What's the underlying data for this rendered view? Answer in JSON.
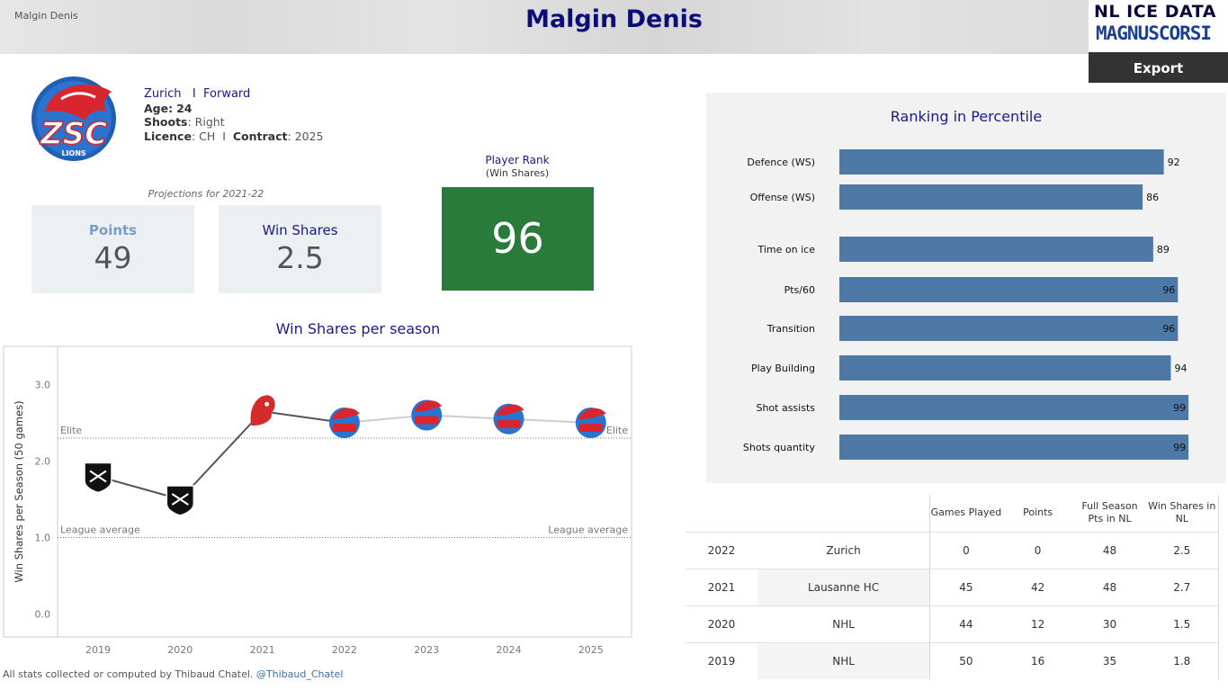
{
  "header": {
    "small_title": "Malgin Denis",
    "title": "Malgin Denis",
    "logo_line1": "NL ICE DATA",
    "logo_line2": "MAGNUSCORSI",
    "export_label": "Export"
  },
  "player": {
    "team": "Zurich",
    "separator": "I",
    "position": "Forward",
    "age_label": "Age:",
    "age": "24",
    "shoots_label": "Shoots",
    "shoots": ": Right",
    "licence_label": "Licence",
    "licence": ": CH",
    "contract_label": "Contract",
    "contract": ": 2025",
    "logo_text": "ZSC",
    "logo_sub": "LIONS"
  },
  "projections": {
    "label": "Projections for 2021-22",
    "points_label": "Points",
    "points_value": "49",
    "ws_label": "Win Shares",
    "ws_value": "2.5"
  },
  "player_rank": {
    "title": "Player Rank",
    "subtitle": "(Win Shares)",
    "value": "96",
    "color": "#2a7a3c"
  },
  "chart_data": [
    {
      "type": "line",
      "title": "Win Shares per season",
      "ylabel": "Win Shares per Season (50 games)",
      "xlabel": "",
      "x": [
        "2019",
        "2020",
        "2021",
        "2022",
        "2023",
        "2024",
        "2025"
      ],
      "series": [
        {
          "values": [
            1.8,
            1.5,
            2.65,
            2.5,
            2.6,
            2.55,
            2.5
          ],
          "teams": [
            "NHL",
            "NHL",
            "Lausanne HC",
            "Zurich",
            "Zurich",
            "Zurich",
            "Zurich"
          ],
          "color": "#555555",
          "projection_color": "#cccccc"
        }
      ],
      "yticks": [
        "0.0",
        "1.0",
        "2.0",
        "3.0"
      ],
      "ylim": [
        -0.3,
        3.5
      ],
      "reference_lines": [
        {
          "label": "Elite",
          "value": 2.3
        },
        {
          "label": "League average",
          "value": 1.0
        }
      ],
      "grid": false
    },
    {
      "type": "bar",
      "orientation": "horizontal",
      "title": "Ranking in Percentile",
      "categories": [
        "Defence (WS)",
        "Offense (WS)",
        "Time on ice",
        "Pts/60",
        "Transition",
        "Play Building",
        "Shot assists",
        "Shots quantity"
      ],
      "values": [
        92,
        86,
        89,
        96,
        96,
        94,
        99,
        99
      ],
      "xlim": [
        0,
        100
      ],
      "color": "#4e79a7"
    }
  ],
  "table": {
    "headers": [
      "",
      "",
      "Games Played",
      "Points",
      "Full Season Pts in NL",
      "Win Shares in NL"
    ],
    "rows": [
      {
        "year": "2022",
        "team": "Zurich",
        "gp": "0",
        "pts": "0",
        "full": "48",
        "ws": "2.5"
      },
      {
        "year": "2021",
        "team": "Lausanne HC",
        "gp": "45",
        "pts": "42",
        "full": "48",
        "ws": "2.7"
      },
      {
        "year": "2020",
        "team": "NHL",
        "gp": "44",
        "pts": "12",
        "full": "30",
        "ws": "1.5"
      },
      {
        "year": "2019",
        "team": "NHL",
        "gp": "50",
        "pts": "16",
        "full": "35",
        "ws": "1.8"
      }
    ]
  },
  "footer": {
    "text": "All stats collected or computed by Thibaud Chatel.",
    "handle": "@Thibaud_Chatel"
  }
}
